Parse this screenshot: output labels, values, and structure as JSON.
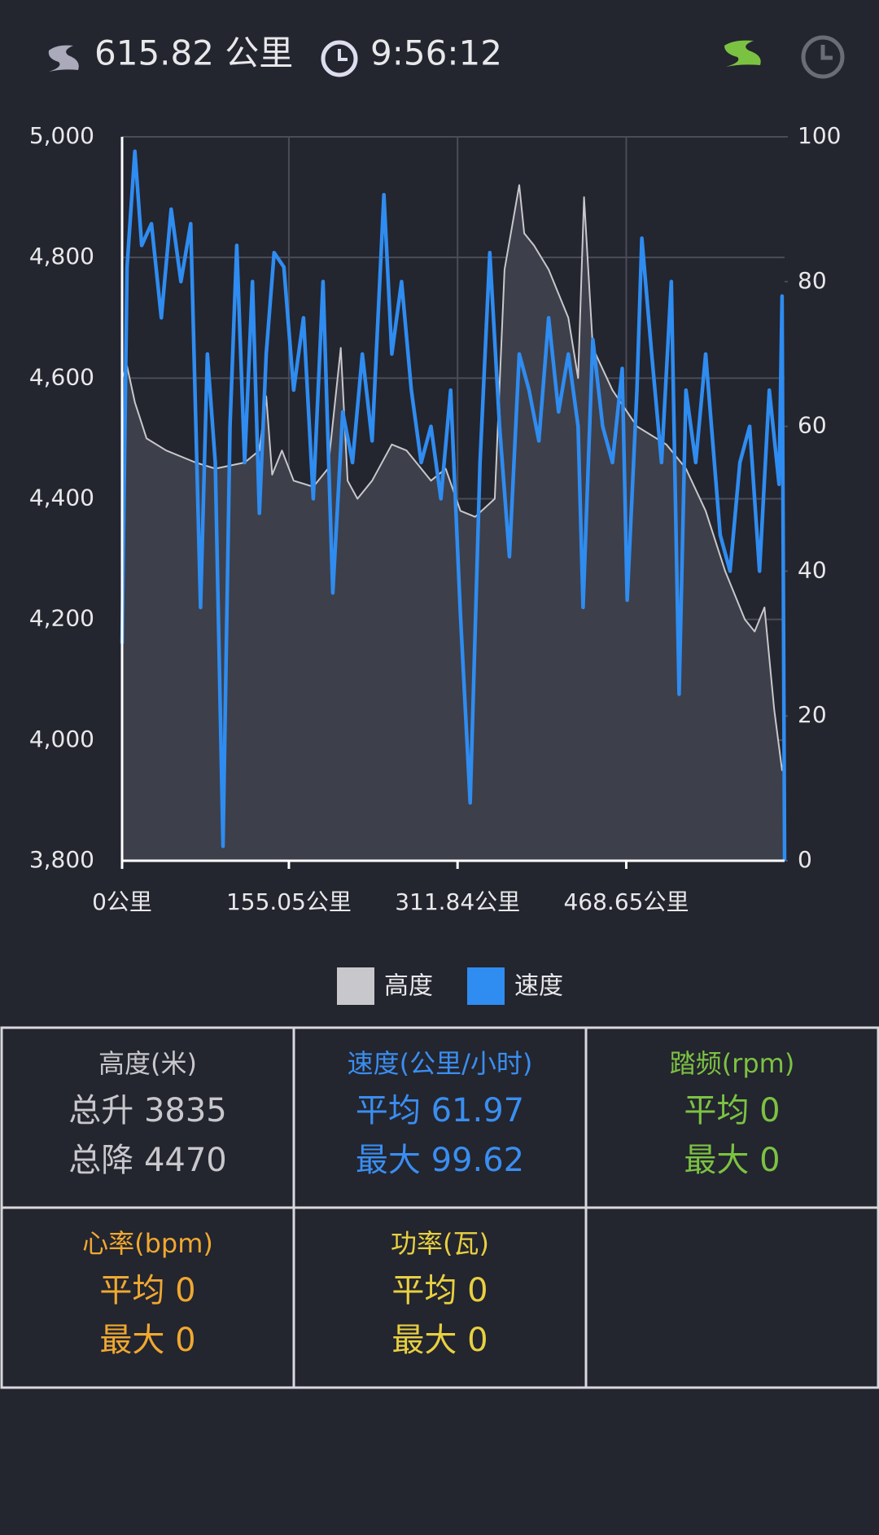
{
  "header": {
    "distance": "615.82 公里",
    "time": "9:56:12"
  },
  "chart_data": {
    "type": "line",
    "xlim": [
      0,
      615.82
    ],
    "xticks": [
      {
        "value": 0,
        "label": "0公里"
      },
      {
        "value": 155.05,
        "label": "155.05公里"
      },
      {
        "value": 311.84,
        "label": "311.84公里"
      },
      {
        "value": 468.65,
        "label": "468.65公里"
      }
    ],
    "ylim": [
      3800,
      5000
    ],
    "yticks": [
      {
        "value": 3800,
        "label": "3,800"
      },
      {
        "value": 4000,
        "label": "4,000"
      },
      {
        "value": 4200,
        "label": "4,200"
      },
      {
        "value": 4400,
        "label": "4,400"
      },
      {
        "value": 4600,
        "label": "4,600"
      },
      {
        "value": 4800,
        "label": "4,800"
      },
      {
        "value": 5000,
        "label": "5,000"
      }
    ],
    "y2lim": [
      0,
      100
    ],
    "y2ticks": [
      0,
      20,
      40,
      60,
      80,
      100
    ],
    "grid": true,
    "legend": "bottom",
    "series": [
      {
        "name": "高度",
        "color": "#c8c8cc",
        "area": true,
        "x": [
          0,
          4.6,
          11.9,
          22.8,
          41.0,
          68.4,
          86.6,
          113.9,
          127.6,
          134.0,
          139.5,
          148.6,
          159.5,
          177.7,
          191.4,
          203.3,
          209.6,
          218.8,
          232.4,
          250.7,
          264.4,
          287.1,
          300.8,
          314.5,
          328.2,
          346.4,
          355.5,
          369.2,
          373.8,
          382.9,
          396.5,
          414.8,
          423.9,
          429.4,
          437.6,
          455.8,
          478.6,
          505.9,
          524.1,
          542.4,
          560.6,
          578.9,
          588.0,
          597.1,
          606.2,
          613.5,
          615.8
        ],
        "values": [
          4600,
          4620,
          4560,
          4500,
          4480,
          4460,
          4450,
          4460,
          4480,
          4570,
          4440,
          4480,
          4430,
          4420,
          4450,
          4650,
          4430,
          4400,
          4430,
          4490,
          4480,
          4430,
          4450,
          4380,
          4370,
          4400,
          4780,
          4920,
          4840,
          4820,
          4780,
          4700,
          4600,
          4900,
          4650,
          4580,
          4520,
          4490,
          4450,
          4380,
          4280,
          4200,
          4180,
          4220,
          4050,
          3950,
          3970
        ]
      },
      {
        "name": "速度",
        "color": "#2f8cf0",
        "axis": "y2",
        "x": [
          0,
          4.6,
          11.9,
          18.2,
          27.3,
          36.5,
          45.6,
          54.7,
          63.8,
          72.9,
          79.3,
          86.6,
          93.8,
          100.3,
          106.6,
          113.9,
          121.2,
          127.6,
          134.0,
          141.3,
          150.4,
          159.5,
          168.6,
          177.7,
          186.8,
          195.9,
          205.1,
          214.2,
          223.3,
          232.4,
          243.4,
          250.7,
          259.8,
          268.9,
          278.0,
          287.1,
          296.3,
          305.4,
          314.5,
          323.6,
          332.7,
          341.8,
          350.9,
          360.0,
          369.2,
          378.3,
          387.4,
          396.5,
          405.7,
          414.8,
          423.9,
          428.5,
          437.6,
          446.7,
          455.8,
          464.9,
          469.5,
          478.6,
          483.1,
          492.3,
          501.4,
          510.5,
          517.8,
          524.1,
          533.2,
          542.4,
          556.0,
          565.1,
          574.3,
          583.4,
          592.5,
          601.6,
          610.7,
          613.5,
          615.8
        ],
        "values": [
          30,
          82,
          98,
          85,
          88,
          75,
          90,
          80,
          88,
          35,
          70,
          55,
          2,
          60,
          85,
          55,
          80,
          48,
          70,
          84,
          82,
          65,
          75,
          50,
          80,
          37,
          62,
          55,
          70,
          58,
          92,
          70,
          80,
          65,
          55,
          60,
          50,
          65,
          34,
          8,
          55,
          84,
          60,
          42,
          70,
          65,
          58,
          75,
          62,
          70,
          60,
          35,
          72,
          60,
          55,
          68,
          36,
          65,
          86,
          70,
          55,
          80,
          23,
          65,
          55,
          70,
          45,
          40,
          55,
          60,
          40,
          65,
          52,
          78,
          0
        ]
      }
    ]
  },
  "stats": [
    {
      "title": "高度(米)",
      "lines": [
        "总升 3835",
        "总降 4470"
      ],
      "color": "#c8c8cc"
    },
    {
      "title": "速度(公里/小时)",
      "lines": [
        "平均 61.97",
        "最大 99.62"
      ],
      "color": "#3a8ef0"
    },
    {
      "title": "踏频(rpm)",
      "lines": [
        "平均 0",
        "最大 0"
      ],
      "color": "#7cc242"
    },
    {
      "title": "心率(bpm)",
      "lines": [
        "平均 0",
        "最大 0"
      ],
      "color": "#f0a830"
    },
    {
      "title": "功率(瓦)",
      "lines": [
        "平均 0",
        "最大 0"
      ],
      "color": "#e8d040"
    }
  ]
}
